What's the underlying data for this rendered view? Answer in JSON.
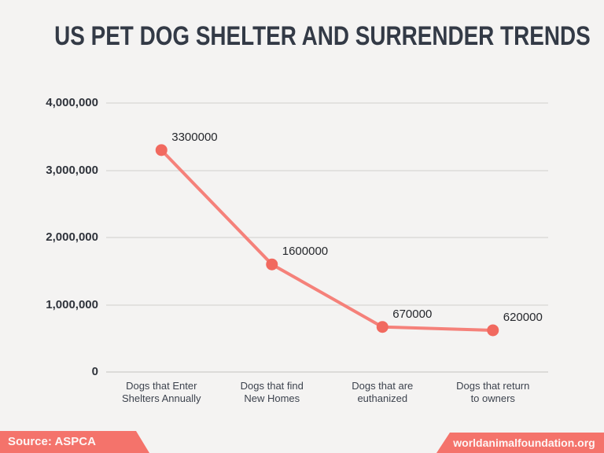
{
  "title": "US PET DOG SHELTER AND SURRENDER TRENDS",
  "chart_data": {
    "type": "line",
    "title": "US PET DOG SHELTER AND SURRENDER TRENDS",
    "categories": [
      "Dogs that Enter Shelters Annually",
      "Dogs that find New Homes",
      "Dogs that are euthanized",
      "Dogs that return to owners"
    ],
    "category_lines": [
      [
        "Dogs that Enter",
        "Shelters Annually"
      ],
      [
        "Dogs that find",
        "New Homes"
      ],
      [
        "Dogs that are",
        "euthanized"
      ],
      [
        "Dogs that return",
        "to owners"
      ]
    ],
    "values": [
      3300000,
      1600000,
      670000,
      620000
    ],
    "point_labels": [
      "3300000",
      "1600000",
      "670000",
      "620000"
    ],
    "xlabel": "",
    "ylabel": "",
    "ylim": [
      0,
      4000000
    ],
    "yticks": [
      0,
      1000000,
      2000000,
      3000000,
      4000000
    ],
    "ytick_labels": [
      "0",
      "1,000,000",
      "2,000,000",
      "3,000,000",
      "4,000,000"
    ],
    "grid": true,
    "legend": "none"
  },
  "colors": {
    "background": "#f4f3f2",
    "accent": "#f4736b",
    "line": "#f5817a",
    "marker": "#f1695f",
    "title_text": "#333a46"
  },
  "footer": {
    "source_label": "Source: ASPCA",
    "website": "worldanimalfoundation.org"
  }
}
